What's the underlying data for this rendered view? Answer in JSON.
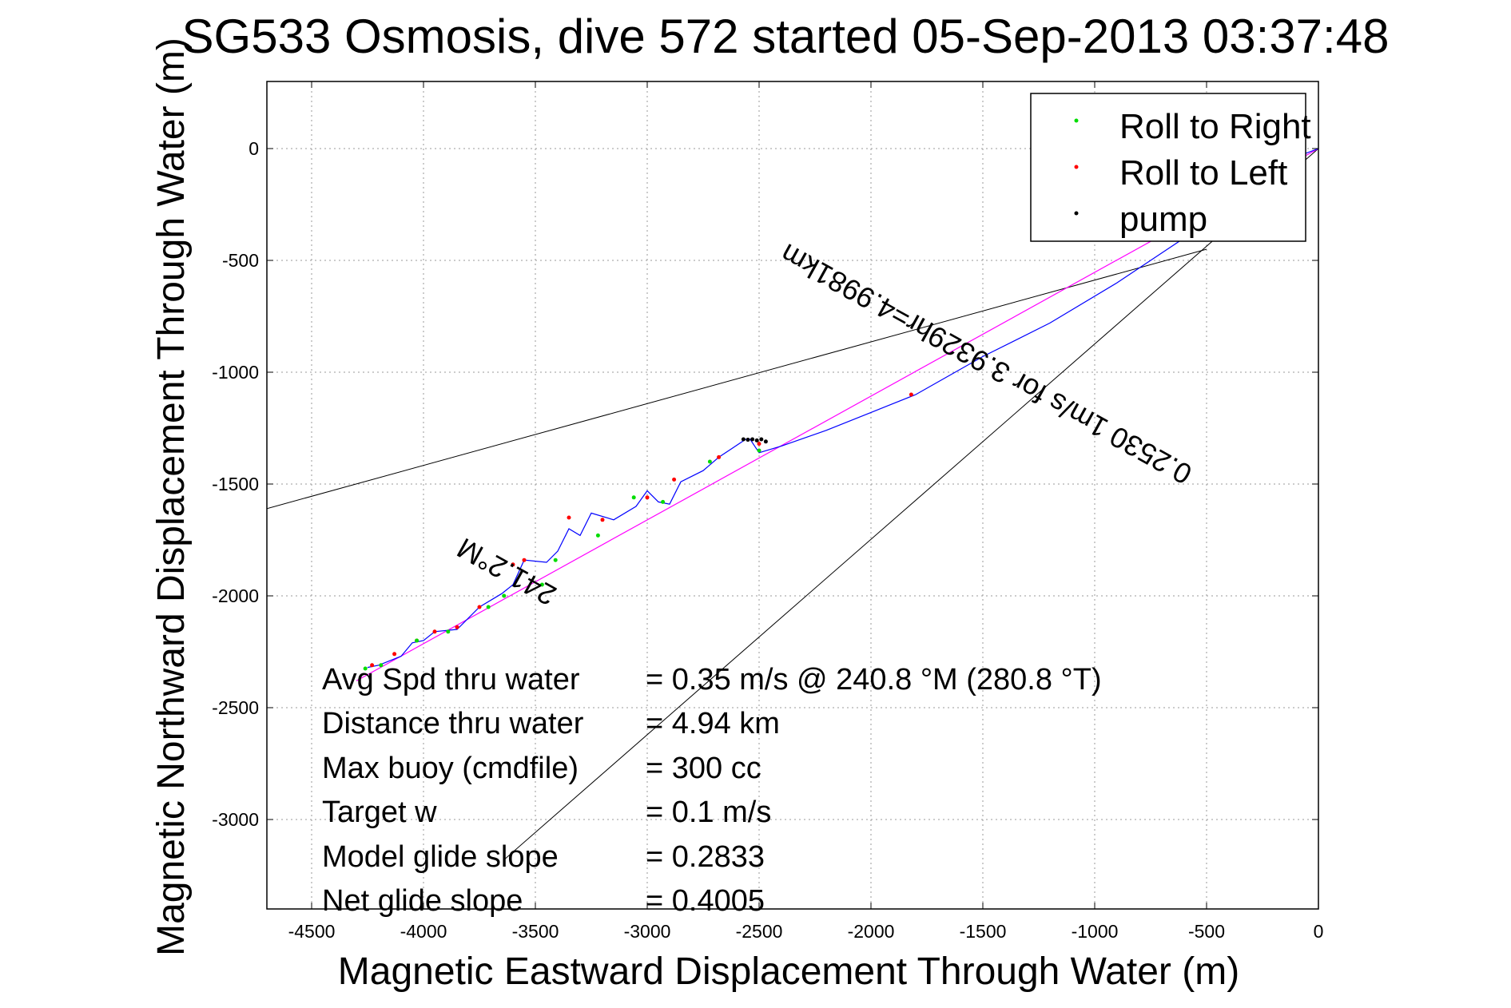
{
  "chart_data": {
    "type": "line",
    "title": "SG533 Osmosis, dive 572 started 05-Sep-2013 03:37:48",
    "xlabel": "Magnetic Eastward Displacement Through Water (m)",
    "ylabel": "Magnetic Northward Displacement Through Water (m)",
    "xlim": [
      -4700,
      0
    ],
    "ylim": [
      -3400,
      300
    ],
    "xticks": [
      -4500,
      -4000,
      -3500,
      -3000,
      -2500,
      -2000,
      -1500,
      -1000,
      -500,
      0
    ],
    "yticks": [
      0,
      -500,
      -1000,
      -1500,
      -2000,
      -2500,
      -3000
    ],
    "grid": true,
    "legend_position": "top-right",
    "legend": [
      {
        "name": "Roll to Right",
        "color": "#00dd00"
      },
      {
        "name": "Roll to Left",
        "color": "#ff0000"
      },
      {
        "name": "pump",
        "color": "#000000"
      }
    ],
    "colors": {
      "track": "#0000ff",
      "straight_line": "#ff00ff",
      "cone": "#000000"
    },
    "track": {
      "x": [
        0,
        -80,
        -300,
        -600,
        -900,
        -1200,
        -1500,
        -1800,
        -2000,
        -2200,
        -2400,
        -2500,
        -2540,
        -2560,
        -2620,
        -2680,
        -2750,
        -2850,
        -2900,
        -2950,
        -3000,
        -3050,
        -3150,
        -3250,
        -3300,
        -3350,
        -3400,
        -3450,
        -3550,
        -3600,
        -3650,
        -3750,
        -3850,
        -3950,
        -4000,
        -4050,
        -4100,
        -4150,
        -4200,
        -4250
      ],
      "y": [
        0,
        -30,
        -200,
        -400,
        -600,
        -780,
        -930,
        -1100,
        -1180,
        -1260,
        -1330,
        -1360,
        -1300,
        -1300,
        -1340,
        -1380,
        -1440,
        -1490,
        -1590,
        -1580,
        -1530,
        -1600,
        -1660,
        -1630,
        -1730,
        -1700,
        -1800,
        -1850,
        -1840,
        -1950,
        -1990,
        -2050,
        -2150,
        -2160,
        -2200,
        -2210,
        -2270,
        -2290,
        -2310,
        -2320
      ]
    },
    "straight_line": {
      "x": [
        0,
        -4300
      ],
      "y": [
        0,
        -2380
      ]
    },
    "cone_lines": [
      {
        "x": [
          -500,
          -4700
        ],
        "y": [
          -450,
          -1610
        ]
      },
      {
        "x": [
          0,
          -3640
        ],
        "y": [
          0,
          -3180
        ]
      }
    ],
    "roll_right_points": {
      "x": [
        -2500,
        -2720,
        -2930,
        -3060,
        -3220,
        -3410,
        -3470,
        -3640,
        -3710,
        -3890,
        -4030,
        -4190,
        -4260
      ],
      "y": [
        -1350,
        -1400,
        -1580,
        -1560,
        -1730,
        -1840,
        -1950,
        -2000,
        -2050,
        -2160,
        -2200,
        -2310,
        -2325
      ]
    },
    "roll_left_points": {
      "x": [
        -1820,
        -2500,
        -2680,
        -2880,
        -3000,
        -3200,
        -3350,
        -3550,
        -3600,
        -3750,
        -3850,
        -3950,
        -4030,
        -4130,
        -4230
      ],
      "y": [
        -1100,
        -1320,
        -1380,
        -1480,
        -1560,
        -1660,
        -1650,
        -1840,
        -1860,
        -2050,
        -2140,
        -2160,
        -2200,
        -2260,
        -2310
      ]
    },
    "pump_points": {
      "x": [
        -2470,
        -2490,
        -2510,
        -2530,
        -2550,
        -2570
      ],
      "y": [
        -1310,
        -1300,
        -1305,
        -1300,
        -1302,
        -1300
      ]
    },
    "annotations": [
      "241.2°M",
      "0.2530 1m/s for 3.9329hr=4.9981km"
    ],
    "stats": [
      {
        "label": "Avg Spd thru water",
        "value": "=  0.35 m/s @ 240.8 °M (280.8 °T)"
      },
      {
        "label": "Distance thru water",
        "value": "=  4.94 km"
      },
      {
        "label": "Max buoy (cmdfile)",
        "value": "= 300 cc"
      },
      {
        "label": "Target w",
        "value": "= 0.1 m/s"
      },
      {
        "label": "Model glide slope",
        "value": "= 0.2833"
      },
      {
        "label": "Net glide slope",
        "value": "= 0.4005"
      }
    ]
  }
}
